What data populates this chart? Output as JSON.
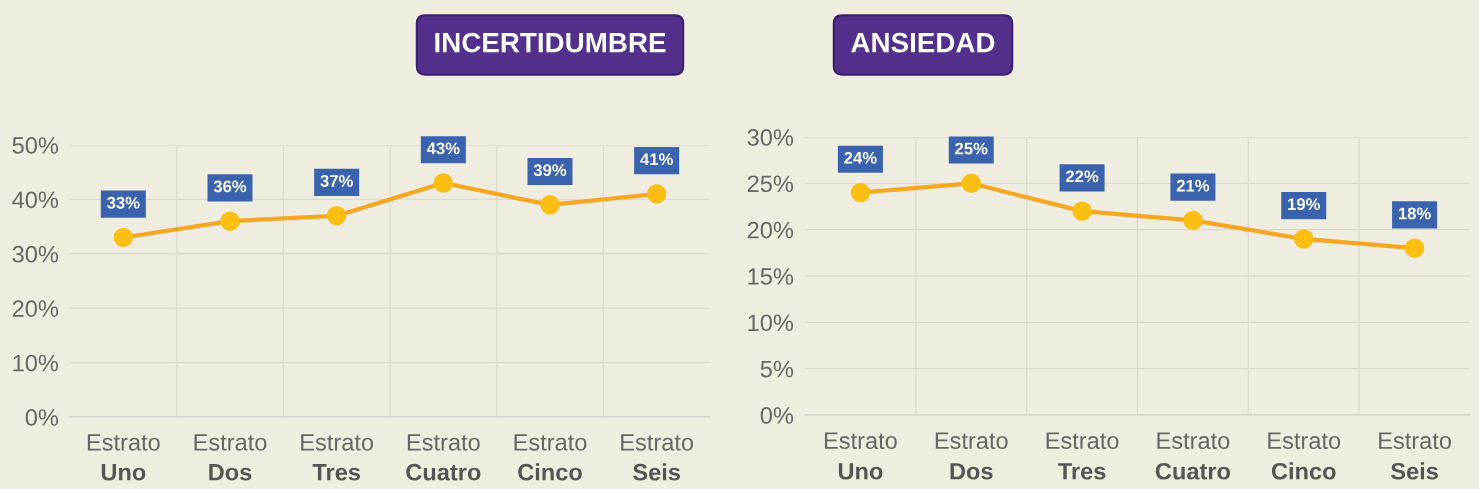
{
  "chart_data": [
    {
      "type": "line",
      "title": "INCERTIDUMBRE",
      "categories": [
        "Estrato\nUno",
        "Estrato\nDos",
        "Estrato\nTres",
        "Estrato\nCuatro",
        "Estrato\nCinco",
        "Estrato\nSeis"
      ],
      "series": [
        {
          "color": "#f5a623",
          "values": [
            33,
            36,
            37,
            43,
            39,
            41
          ],
          "value_labels": [
            "33%",
            "36%",
            "37%",
            "43%",
            "39%",
            "41%"
          ]
        }
      ],
      "ylim": [
        0,
        50
      ],
      "yticks": [
        {
          "value": 0,
          "label": "0%"
        },
        {
          "value": 10,
          "label": "10%"
        },
        {
          "value": 20,
          "label": "20%"
        },
        {
          "value": 30,
          "label": "30%"
        },
        {
          "value": 40,
          "label": "40%"
        },
        {
          "value": 50,
          "label": "50%"
        }
      ],
      "grid": true,
      "marker": "circle",
      "line_style": "solid"
    },
    {
      "type": "line",
      "title": "ANSIEDAD",
      "categories": [
        "Estrato\nUno",
        "Estrato\nDos",
        "Estrato\nTres",
        "Estrato\nCuatro",
        "Estrato\nCinco",
        "Estrato\nSeis"
      ],
      "series": [
        {
          "color": "#f5a623",
          "values": [
            24,
            25,
            22,
            21,
            19,
            18
          ],
          "value_labels": [
            "24%",
            "25%",
            "22%",
            "21%",
            "19%",
            "18%"
          ]
        }
      ],
      "ylim": [
        0,
        30
      ],
      "yticks": [
        {
          "value": 0,
          "label": "0%"
        },
        {
          "value": 5,
          "label": "5%"
        },
        {
          "value": 10,
          "label": "10%"
        },
        {
          "value": 15,
          "label": "15%"
        },
        {
          "value": 20,
          "label": "20%"
        },
        {
          "value": 25,
          "label": "25%"
        },
        {
          "value": 30,
          "label": "30%"
        }
      ],
      "grid": true,
      "marker": "circle",
      "line_style": "solid"
    }
  ]
}
